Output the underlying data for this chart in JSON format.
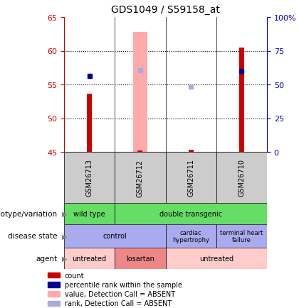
{
  "title": "GDS1049 / S59158_at",
  "samples": [
    "GSM26713",
    "GSM26712",
    "GSM26711",
    "GSM26710"
  ],
  "ylim_left": [
    45,
    65
  ],
  "ylim_right": [
    0,
    100
  ],
  "yticks_left": [
    45,
    50,
    55,
    60,
    65
  ],
  "yticks_right": [
    0,
    25,
    50,
    75,
    100
  ],
  "ytick_labels_right": [
    "0",
    "25",
    "50",
    "75",
    "100%"
  ],
  "red_bars": {
    "GSM26713": [
      45,
      53.6
    ],
    "GSM26712": [
      45,
      45.2
    ],
    "GSM26711": [
      45,
      45.3
    ],
    "GSM26710": [
      45,
      60.5
    ]
  },
  "pink_bars": {
    "GSM26712": [
      45,
      62.8
    ]
  },
  "blue_squares": {
    "GSM26713": 56.3,
    "GSM26710": 57.0
  },
  "light_blue_squares": {
    "GSM26712": 57.1,
    "GSM26711": 54.7
  },
  "annotation_rows": [
    {
      "label": "genotype/variation",
      "cells": [
        {
          "text": "wild type",
          "span": [
            0,
            1
          ],
          "color": "#66dd66"
        },
        {
          "text": "double transgenic",
          "span": [
            1,
            4
          ],
          "color": "#66dd66"
        }
      ]
    },
    {
      "label": "disease state",
      "cells": [
        {
          "text": "control",
          "span": [
            0,
            2
          ],
          "color": "#aaaaee"
        },
        {
          "text": "cardiac\nhypertrophy",
          "span": [
            2,
            3
          ],
          "color": "#aaaaee"
        },
        {
          "text": "terminal heart\nfailure",
          "span": [
            3,
            4
          ],
          "color": "#aaaaee"
        }
      ]
    },
    {
      "label": "agent",
      "cells": [
        {
          "text": "untreated",
          "span": [
            0,
            1
          ],
          "color": "#ffcccc"
        },
        {
          "text": "losartan",
          "span": [
            1,
            2
          ],
          "color": "#ee8888"
        },
        {
          "text": "untreated",
          "span": [
            2,
            4
          ],
          "color": "#ffcccc"
        }
      ]
    }
  ],
  "legend_items": [
    {
      "color": "#cc0000",
      "marker": "square",
      "label": "count"
    },
    {
      "color": "#000099",
      "marker": "square",
      "label": "percentile rank within the sample"
    },
    {
      "color": "#ffaaaa",
      "marker": "square",
      "label": "value, Detection Call = ABSENT"
    },
    {
      "color": "#aaaadd",
      "marker": "square",
      "label": "rank, Detection Call = ABSENT"
    }
  ],
  "bar_color_red": "#cc0000",
  "bar_color_pink": "#ffaaaa",
  "square_color_blue": "#000099",
  "square_color_lightblue": "#aaaadd",
  "axis_color_left": "#cc0000",
  "axis_color_right": "#0000cc",
  "sample_area_color": "#cccccc",
  "chart_bg_color": "#ffffff"
}
